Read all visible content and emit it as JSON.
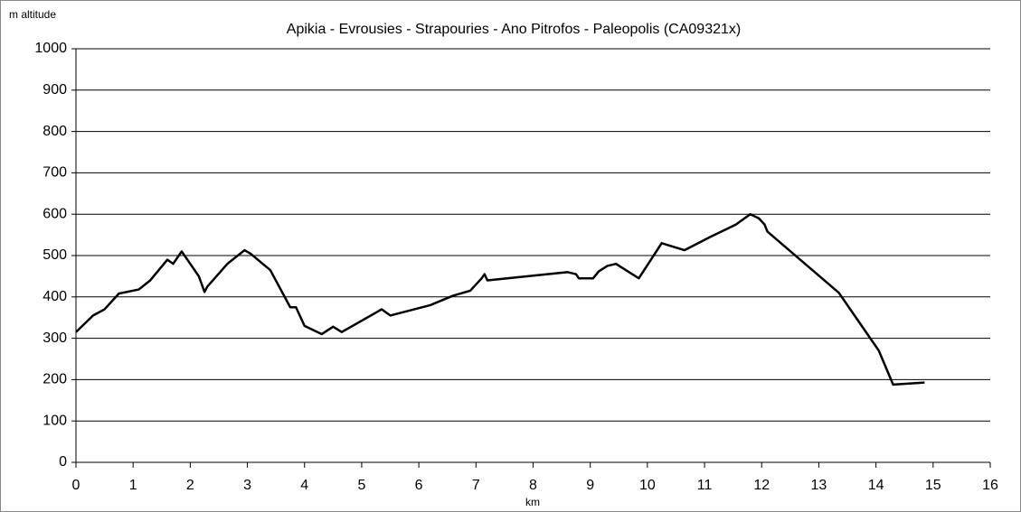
{
  "chart_data": {
    "type": "line",
    "title": "Apikia - Evrousies - Strapouries - Ano Pitrofos - Paleopolis (CA09321x)",
    "y_label": "m altitude",
    "x_label": "km",
    "x": [
      0,
      0.3,
      0.5,
      0.75,
      1.1,
      1.3,
      1.6,
      1.7,
      1.85,
      2.15,
      2.25,
      2.3,
      2.65,
      2.95,
      3.05,
      3.4,
      3.75,
      3.85,
      4.0,
      4.3,
      4.5,
      4.65,
      5.35,
      5.5,
      6.2,
      6.6,
      6.9,
      7.1,
      7.15,
      7.2,
      8.6,
      8.75,
      8.8,
      9.05,
      9.15,
      9.3,
      9.45,
      9.85,
      10.25,
      10.65,
      11.1,
      11.55,
      11.8,
      11.95,
      12.05,
      12.1,
      13.35,
      13.85,
      14.05,
      14.3,
      14.85
    ],
    "series": [
      {
        "name": "altitude",
        "color": "#000000",
        "values": [
          315,
          355,
          370,
          408,
          418,
          440,
          490,
          480,
          510,
          450,
          412,
          425,
          480,
          513,
          505,
          465,
          375,
          375,
          330,
          310,
          328,
          315,
          370,
          355,
          380,
          403,
          415,
          445,
          455,
          440,
          460,
          455,
          445,
          445,
          462,
          475,
          480,
          445,
          530,
          513,
          545,
          575,
          600,
          590,
          575,
          558,
          410,
          310,
          270,
          188,
          193
        ]
      }
    ],
    "xlim": [
      0,
      16
    ],
    "xticks": [
      0,
      1,
      2,
      3,
      4,
      5,
      6,
      7,
      8,
      9,
      10,
      11,
      12,
      13,
      14,
      15,
      16
    ],
    "ylim": [
      0,
      1000
    ],
    "yticks": [
      0,
      100,
      200,
      300,
      400,
      500,
      600,
      700,
      800,
      900,
      1000
    ],
    "grid": true
  }
}
